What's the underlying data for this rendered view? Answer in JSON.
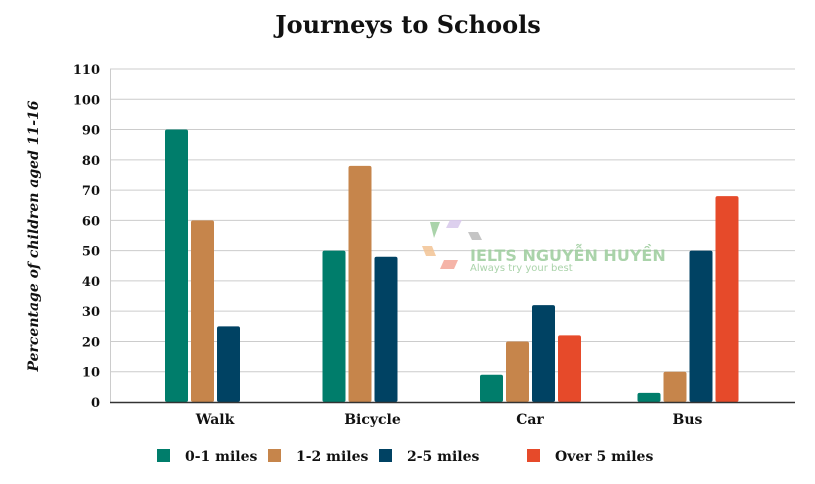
{
  "chart_data": {
    "type": "bar",
    "title": "Journeys to Schools",
    "xlabel": "",
    "ylabel": "Percentage of children aged 11-16",
    "ylim": [
      0,
      110
    ],
    "yticks": [
      0,
      10,
      20,
      30,
      40,
      50,
      60,
      70,
      80,
      90,
      100,
      110
    ],
    "grid": true,
    "legend_position": "bottom",
    "categories": [
      "Walk",
      "Bicycle",
      "Car",
      "Bus"
    ],
    "series": [
      {
        "name": "0-1 miles",
        "color": "#007d6b",
        "values": [
          90,
          50,
          9,
          3
        ]
      },
      {
        "name": "1-2 miles",
        "color": "#c6854b",
        "values": [
          60,
          78,
          20,
          10
        ]
      },
      {
        "name": "2-5 miles",
        "color": "#004263",
        "values": [
          25,
          48,
          32,
          50
        ]
      },
      {
        "name": "Over 5 miles",
        "color": "#e64a2a",
        "values": [
          0,
          0,
          22,
          68
        ]
      }
    ]
  },
  "watermark": {
    "brand": "IELTS NGUYỄN HUYỀN",
    "slogan": "Always try your best"
  }
}
